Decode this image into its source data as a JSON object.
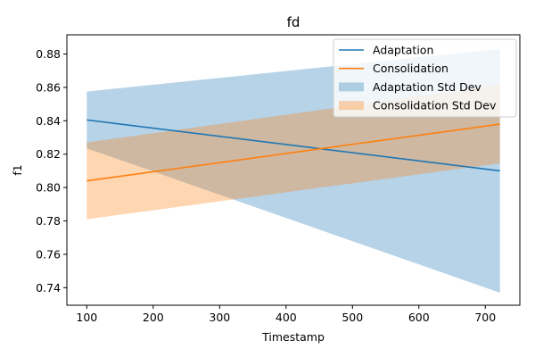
{
  "chart_data": {
    "type": "line",
    "title": "fd",
    "xlabel": "Timestamp",
    "ylabel": "f1",
    "xlim": [
      70,
      752
    ],
    "ylim": [
      0.7295,
      0.8915
    ],
    "xticks": [
      100,
      200,
      300,
      400,
      500,
      600,
      700
    ],
    "yticks": [
      0.74,
      0.76,
      0.78,
      0.8,
      0.82,
      0.84,
      0.86,
      0.88
    ],
    "grid": false,
    "legend_position": "top-right",
    "series": [
      {
        "name": "Adaptation",
        "color": "#1f77b4",
        "x": [
          100,
          722
        ],
        "values": [
          0.8405,
          0.81
        ],
        "band_name": "Adaptation Std Dev",
        "band_lower": [
          0.8235,
          0.737
        ],
        "band_upper": [
          0.8575,
          0.883
        ]
      },
      {
        "name": "Consolidation",
        "color": "#ff7f0e",
        "x": [
          100,
          722
        ],
        "values": [
          0.804,
          0.838
        ],
        "band_name": "Consolidation Std Dev",
        "band_lower": [
          0.781,
          0.8145
        ],
        "band_upper": [
          0.827,
          0.8615
        ]
      }
    ]
  }
}
